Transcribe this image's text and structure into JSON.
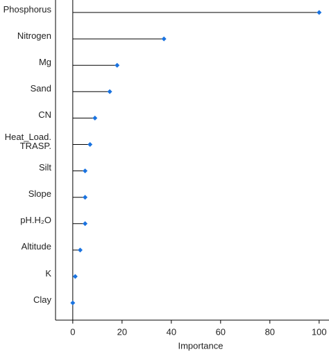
{
  "chart_data": {
    "type": "lollipop",
    "orientation": "horizontal",
    "categories": [
      "Phosphorus",
      "Nitrogen",
      "Mg",
      "Sand",
      "CN",
      "Heat_Load.\nTRASP.",
      "Silt",
      "Slope",
      "pH.H₂O",
      "Altitude",
      "K",
      "Clay"
    ],
    "values": [
      100,
      37,
      18,
      15,
      9,
      7,
      5,
      5,
      5,
      3,
      1,
      0
    ],
    "color": "#1a73e0",
    "xlabel": "Importance",
    "xlim": [
      -7,
      104
    ],
    "xticks": [
      0,
      20,
      40,
      60,
      80,
      100
    ]
  }
}
